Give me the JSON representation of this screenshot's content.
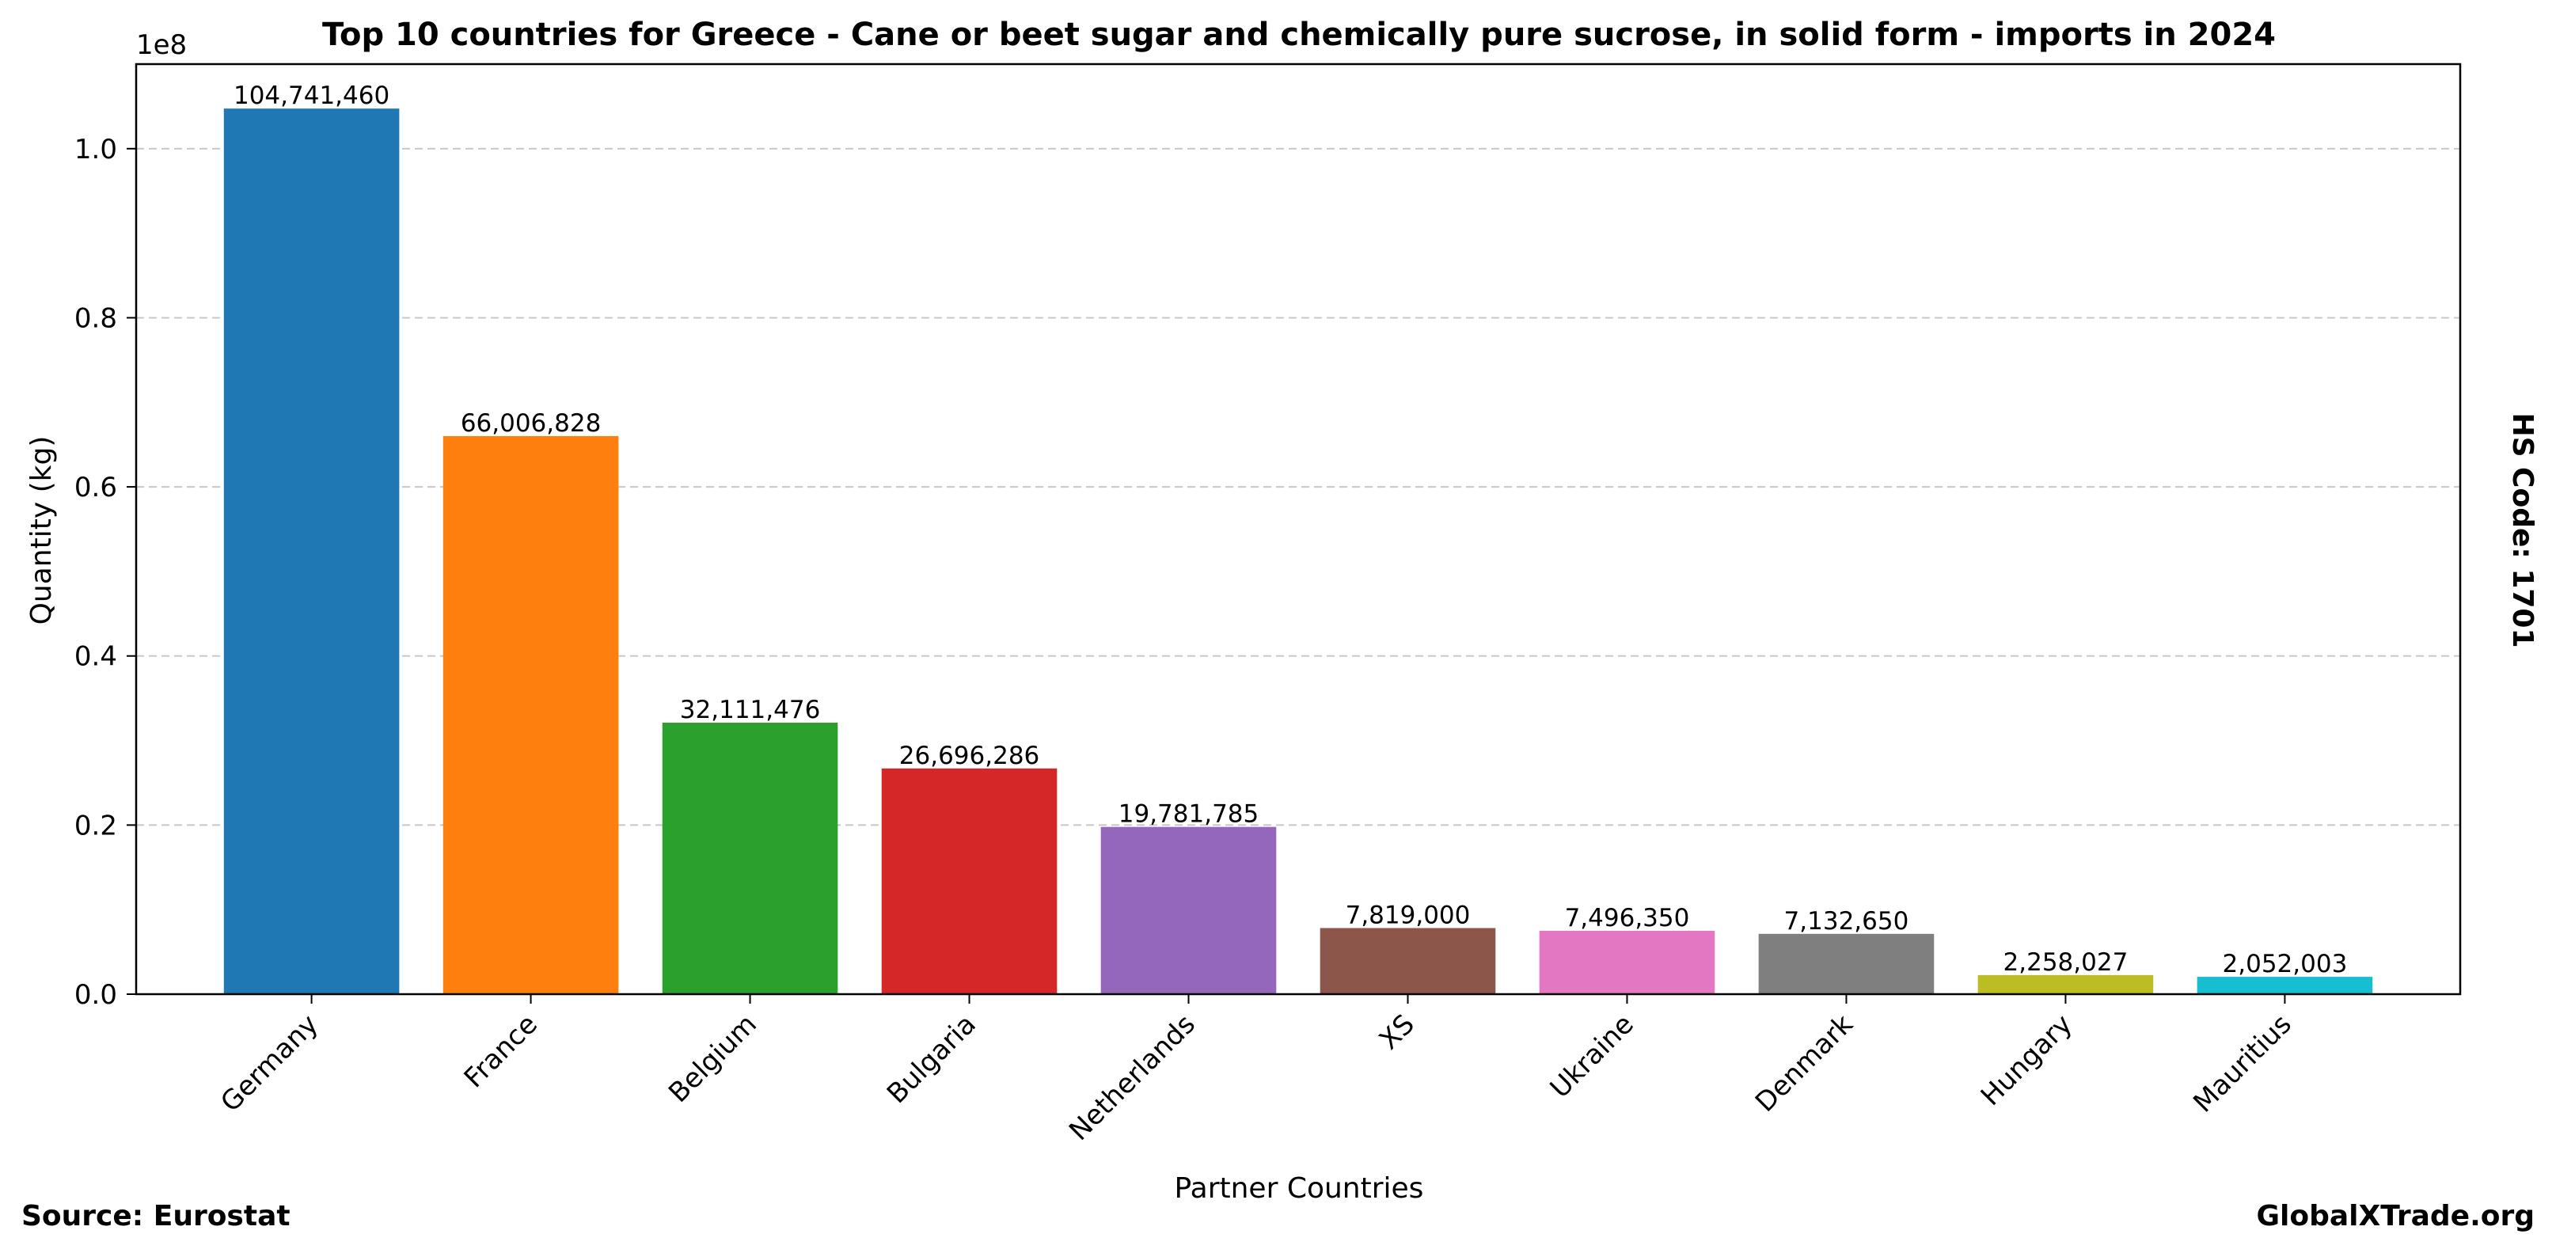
{
  "chart_data": {
    "type": "bar",
    "title": "Top 10 countries for Greece - Cane or beet sugar and chemically pure sucrose, in solid form - imports in 2024",
    "xlabel": "Partner Countries",
    "ylabel": "Quantity (kg)",
    "y_offset_label": "1e8",
    "categories": [
      "Germany",
      "France",
      "Belgium",
      "Bulgaria",
      "Netherlands",
      "XS",
      "Ukraine",
      "Denmark",
      "Hungary",
      "Mauritius"
    ],
    "values": [
      104741460,
      66006828,
      32111476,
      26696286,
      19781785,
      7819000,
      7496350,
      7132650,
      2258027,
      2052003
    ],
    "value_labels": [
      "104,741,460",
      "66,006,828",
      "32,111,476",
      "26,696,286",
      "19,781,785",
      "7,819,000",
      "7,496,350",
      "7,132,650",
      "2,258,027",
      "2,052,003"
    ],
    "colors": [
      "#1f77b4",
      "#ff7f0e",
      "#2ca02c",
      "#d62728",
      "#9467bd",
      "#8c564b",
      "#e377c2",
      "#7f7f7f",
      "#bcbd22",
      "#17becf"
    ],
    "ylim": [
      0,
      110000000
    ],
    "yticks": [
      0,
      20000000,
      40000000,
      60000000,
      80000000,
      100000000
    ],
    "ytick_labels": [
      "0.0",
      "0.2",
      "0.4",
      "0.6",
      "0.8",
      "1.0"
    ],
    "grid": "horizontal dashed",
    "right_label": "HS Code: 1701"
  },
  "footer": {
    "source": "Source: Eurostat",
    "brand": "GlobalXTrade.org"
  }
}
